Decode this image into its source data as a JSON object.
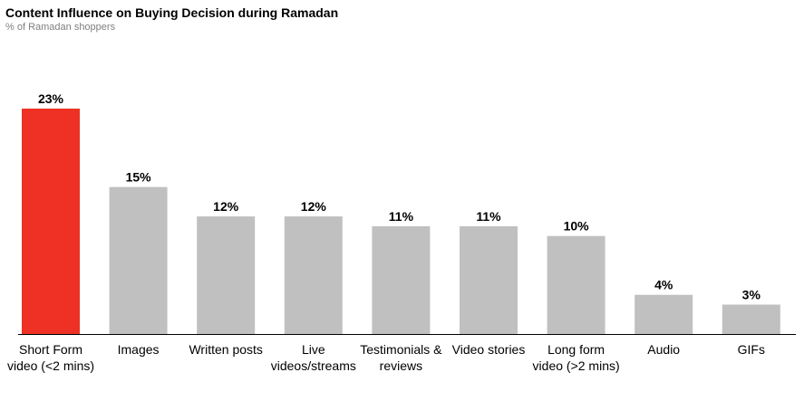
{
  "header": {
    "title": "Content Influence on Buying Decision during Ramadan",
    "subtitle": "% of Ramadan shoppers"
  },
  "colors": {
    "highlight": "#ee3124",
    "bar": "#c0c0c0",
    "axis": "#000000"
  },
  "chart_data": {
    "type": "bar",
    "title": "Content Influence on Buying Decision during Ramadan",
    "subtitle": "% of Ramadan shoppers",
    "categories": [
      "Short Form video (<2 mins)",
      "Images",
      "Written posts",
      "Live videos/streams",
      "Testimonials & reviews",
      "Video stories",
      "Long form video (>2 mins)",
      "Audio",
      "GIFs"
    ],
    "values": [
      23,
      15,
      12,
      12,
      11,
      11,
      10,
      4,
      3
    ],
    "data_labels": [
      "23%",
      "15%",
      "12%",
      "12%",
      "11%",
      "11%",
      "10%",
      "4%",
      "3%"
    ],
    "highlight_index": 0,
    "ylim": [
      0,
      23
    ],
    "grid": false,
    "legend": "none"
  }
}
